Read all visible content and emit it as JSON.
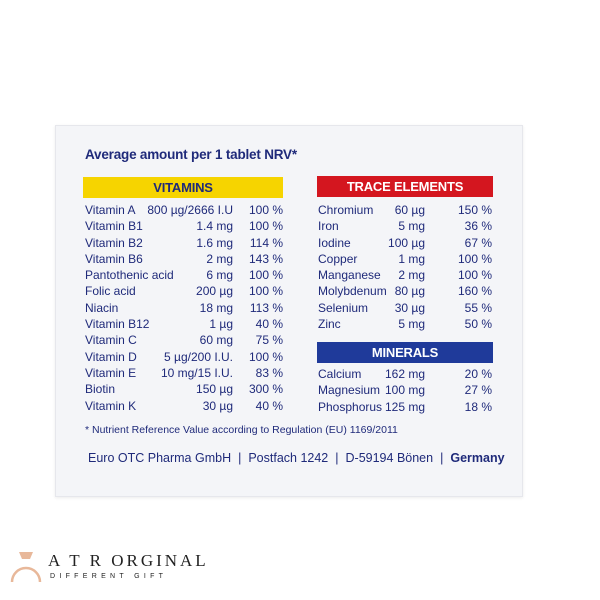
{
  "title": "Average amount per 1 tablet NRV*",
  "vitamins": {
    "header": "VITAMINS",
    "color": "#f6d400",
    "rows": [
      [
        "Vitamin A",
        "800 µg/2666 I.U",
        "100 %"
      ],
      [
        "Vitamin B1",
        "1.4 mg",
        "100 %"
      ],
      [
        "Vitamin B2",
        "1.6 mg",
        "114 %"
      ],
      [
        "Vitamin B6",
        "2 mg",
        "143 %"
      ],
      [
        "Pantothenic acid",
        "6 mg",
        "100 %"
      ],
      [
        "Folic acid",
        "200 µg",
        "100 %"
      ],
      [
        "Niacin",
        "18 mg",
        "113 %"
      ],
      [
        "Vitamin B12",
        "1 µg",
        "40 %"
      ],
      [
        "Vitamin C",
        "60 mg",
        "75 %"
      ],
      [
        "Vitamin D",
        "5 µg/200 I.U.",
        "100 %"
      ],
      [
        "Vitamin E",
        "10 mg/15 I.U.",
        "83 %"
      ],
      [
        "Biotin",
        "150 µg",
        "300 %"
      ],
      [
        "Vitamin K",
        "30 µg",
        "40 %"
      ]
    ]
  },
  "trace_elements": {
    "header": "TRACE ELEMENTS",
    "color": "#d4161f",
    "rows": [
      [
        "Chromium",
        "60 µg",
        "150 %"
      ],
      [
        "Iron",
        "5 mg",
        "36 %"
      ],
      [
        "Iodine",
        "100 µg",
        "67 %"
      ],
      [
        "Copper",
        "1 mg",
        "100 %"
      ],
      [
        "Manganese",
        "2 mg",
        "100 %"
      ],
      [
        "Molybdenum",
        "80 µg",
        "160 %"
      ],
      [
        "Selenium",
        "30 µg",
        "55 %"
      ],
      [
        "Zinc",
        "5 mg",
        "50 %"
      ]
    ]
  },
  "minerals": {
    "header": "MINERALS",
    "color": "#1f3a9a",
    "rows": [
      [
        "Calcium",
        "162 mg",
        "20 %"
      ],
      [
        "Magnesium",
        "100 mg",
        "27 %"
      ],
      [
        "Phosphorus",
        "125 mg",
        "18 %"
      ]
    ]
  },
  "footnote": "*  Nutrient Reference Value according to Regulation (EU) 1169/2011",
  "footer": {
    "company": "Euro OTC Pharma GmbH",
    "postbox": "Postfach 1242",
    "city": "D-59194 Bönen",
    "country": "Germany",
    "separator": "|"
  },
  "watermark": {
    "line1": "A T R  ORGINAL",
    "line2": "DIFFERENT GIFT",
    "icon": "ring-icon"
  }
}
